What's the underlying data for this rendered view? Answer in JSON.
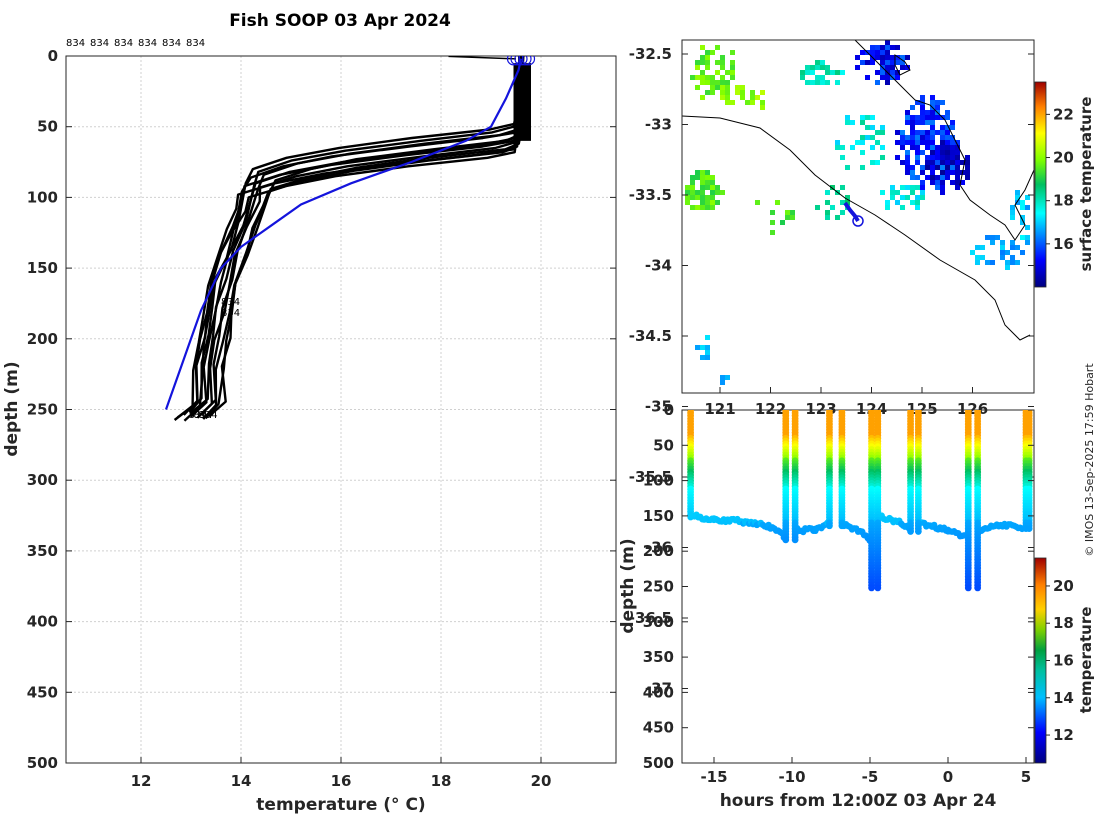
{
  "title": "Fish SOOP 03 Apr 2024",
  "credit": "© IMOS 13-Sep-2025 17:59 Hobart",
  "profile_id": "834",
  "chart_data": [
    {
      "id": "profile",
      "type": "line",
      "xlabel": "temperature (° C)",
      "ylabel": "depth (m)",
      "xlim": [
        10.5,
        21.5
      ],
      "ylim": [
        0,
        500
      ],
      "xticks": [
        12,
        14,
        16,
        18,
        20
      ],
      "yticks": [
        0,
        50,
        100,
        150,
        200,
        250,
        300,
        350,
        400,
        450,
        500
      ],
      "top_labels": [
        "834",
        "834",
        "834",
        "834",
        "834",
        "834"
      ],
      "bottom_labels": [
        "834",
        "834",
        "834"
      ],
      "mid_labels": [
        "834",
        "834"
      ],
      "series": [
        {
          "name": "mean",
          "color": "#1414dc",
          "x": [
            12.5,
            12.8,
            13.0,
            13.2,
            13.4,
            13.6,
            14.0,
            14.6,
            15.2,
            16.2,
            17.4,
            18.5,
            19.0,
            19.3,
            19.55,
            19.6
          ],
          "y": [
            250,
            220,
            200,
            180,
            165,
            150,
            135,
            120,
            105,
            90,
            75,
            60,
            50,
            30,
            10,
            2
          ]
        },
        {
          "name": "casts",
          "color": "#000000",
          "x": [
            13.0,
            13.3,
            13.3,
            13.4,
            13.5,
            13.6,
            13.8,
            14.0,
            14.2,
            14.3,
            15.0,
            16.0,
            17.5,
            19.0,
            19.5,
            19.6,
            19.6
          ],
          "y": [
            255,
            245,
            220,
            200,
            180,
            160,
            140,
            120,
            100,
            90,
            82,
            75,
            68,
            62,
            58,
            30,
            0
          ]
        }
      ]
    },
    {
      "id": "map",
      "type": "heatmap",
      "ylabel_ticks": [
        "-32.5",
        "-33",
        "-33.5",
        "-34",
        "-34.5",
        "-35",
        "-35.5",
        "-36",
        "-36.5",
        "-37"
      ],
      "xlabel_ticks": [
        "121",
        "122",
        "123",
        "124",
        "125",
        "126"
      ],
      "colorbar_label": "surface temperature",
      "colorbar_ticks": [
        16,
        18,
        20,
        22
      ],
      "colorbar_range": [
        14,
        23.5
      ]
    },
    {
      "id": "section",
      "type": "scatter",
      "xlabel": "hours from 12:00Z 03 Apr 24",
      "ylabel": "depth (m)",
      "xlim": [
        -17,
        6
      ],
      "ylim": [
        0,
        500
      ],
      "xticks": [
        -15,
        -10,
        -5,
        0,
        5
      ],
      "yticks": [
        0,
        50,
        100,
        150,
        200,
        250,
        300,
        350,
        400,
        450,
        500
      ],
      "colorbar_label": "temperature",
      "colorbar_ticks": [
        12,
        14,
        16,
        18,
        20
      ],
      "colorbar_range": [
        10.5,
        21.5
      ],
      "cast_hours": [
        -16.5,
        -10.3,
        -7.5,
        -4.7,
        -2.3,
        1.6,
        5.2
      ],
      "cast_depths": [
        150,
        185,
        165,
        255,
        175,
        255,
        170
      ]
    }
  ]
}
